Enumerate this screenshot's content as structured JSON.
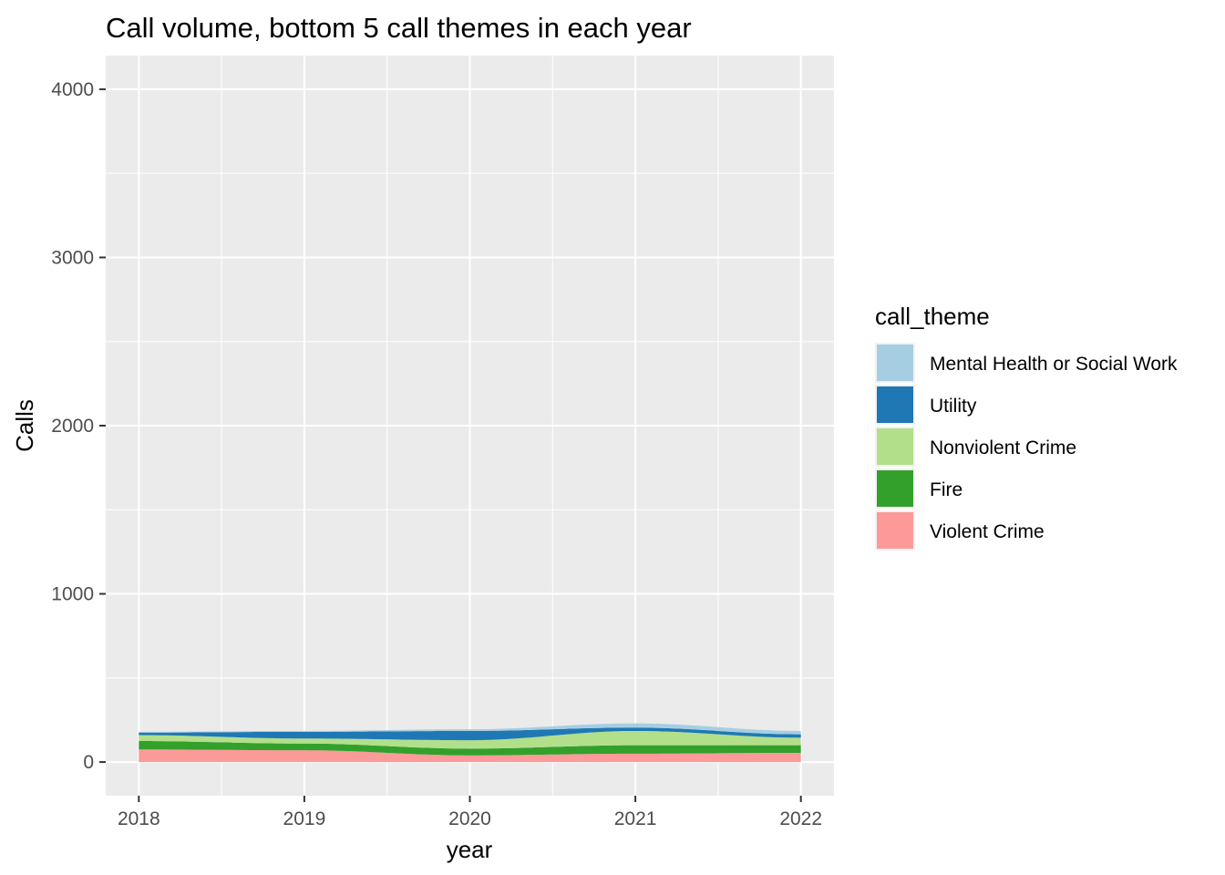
{
  "chart_data": {
    "type": "area",
    "title": "Call volume, bottom 5 call themes in each year",
    "xlabel": "year",
    "ylabel": "Calls",
    "x": [
      2018,
      2019,
      2020,
      2021,
      2022
    ],
    "xlim": [
      2017.8,
      2022.2
    ],
    "ylim": [
      -200,
      4200
    ],
    "y_ticks": [
      0,
      1000,
      2000,
      3000,
      4000
    ],
    "y_tick_labels": [
      "0",
      "1000",
      "2000",
      "3000",
      "4000"
    ],
    "x_ticks": [
      2018,
      2019,
      2020,
      2021,
      2022
    ],
    "x_tick_labels": [
      "2018",
      "2019",
      "2020",
      "2021",
      "2022"
    ],
    "grid": true,
    "stacked": true,
    "legend_title": "call_theme",
    "legend_position": "right",
    "series": [
      {
        "name": "Violent Crime",
        "color": "#FB9A99",
        "values": [
          75,
          70,
          40,
          50,
          55
        ]
      },
      {
        "name": "Fire",
        "color": "#33A02C",
        "values": [
          50,
          40,
          40,
          50,
          45
        ]
      },
      {
        "name": "Nonviolent Crime",
        "color": "#B2DF8A",
        "values": [
          35,
          30,
          50,
          85,
          45
        ]
      },
      {
        "name": "Utility",
        "color": "#1F78B4",
        "values": [
          15,
          40,
          55,
          20,
          20
        ]
      },
      {
        "name": "Mental Health or Social Work",
        "color": "#A6CEE3",
        "values": [
          5,
          5,
          10,
          25,
          20
        ]
      }
    ],
    "legend_order": [
      "Mental Health or Social Work",
      "Utility",
      "Nonviolent Crime",
      "Fire",
      "Violent Crime"
    ]
  }
}
